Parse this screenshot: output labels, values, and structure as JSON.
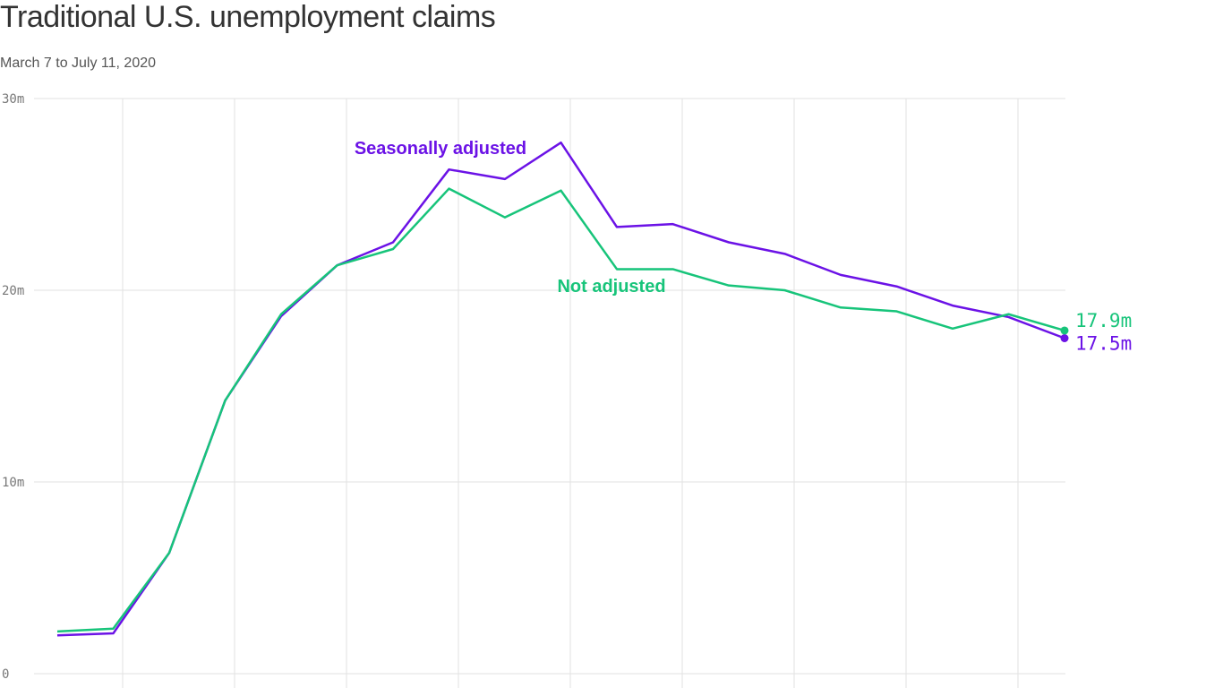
{
  "chart_data": {
    "type": "line",
    "title": "Traditional U.S. unemployment claims",
    "subtitle": "March 7 to July 11, 2020",
    "categories": [
      null,
      null,
      null,
      null,
      null,
      null,
      null,
      null,
      null,
      null,
      null,
      null,
      null,
      null,
      null,
      null,
      null,
      null,
      null
    ],
    "series": [
      {
        "name": "Seasonally adjusted",
        "color": "#6b12e6",
        "values": [
          2.0,
          2.1,
          6.3,
          14.25,
          18.65,
          21.3,
          22.5,
          26.3,
          25.8,
          27.7,
          23.3,
          23.45,
          22.5,
          21.9,
          20.8,
          20.2,
          19.2,
          18.6,
          17.5
        ],
        "value_labels": [
          null,
          null,
          null,
          null,
          null,
          null,
          null,
          null,
          null,
          null,
          null,
          null,
          null,
          null,
          null,
          null,
          null,
          null,
          "17.5m"
        ]
      },
      {
        "name": "Not adjusted",
        "color": "#17c47a",
        "values": [
          2.2,
          2.35,
          6.3,
          14.25,
          18.75,
          21.3,
          22.15,
          25.3,
          23.8,
          25.2,
          21.1,
          21.1,
          20.25,
          20.0,
          19.1,
          18.9,
          18.0,
          18.75,
          17.9
        ],
        "value_labels": [
          null,
          null,
          null,
          null,
          null,
          null,
          null,
          null,
          null,
          null,
          null,
          null,
          null,
          null,
          null,
          null,
          null,
          null,
          "17.9m"
        ]
      }
    ],
    "ylim": [
      0,
      30
    ],
    "yticks": [
      0,
      {
        "value": 10,
        "label": "10m"
      },
      {
        "value": 20,
        "label": "20m"
      },
      {
        "value": 30,
        "label": "30m"
      }
    ],
    "grid": true
  }
}
